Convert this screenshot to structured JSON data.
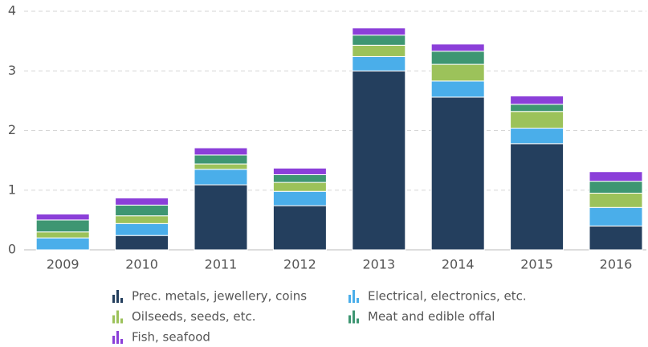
{
  "chart_data": {
    "type": "stacked_bar",
    "categories": [
      "2009",
      "2010",
      "2011",
      "2012",
      "2013",
      "2014",
      "2015",
      "2016"
    ],
    "series": [
      {
        "name": "Prec. metals, jewellery, coins",
        "color": "#243f5e",
        "values": [
          0.0,
          0.24,
          1.09,
          0.74,
          3.0,
          2.56,
          1.78,
          0.4
        ]
      },
      {
        "name": "Electrical, electronics, etc.",
        "color": "#4aaeea",
        "values": [
          0.2,
          0.2,
          0.26,
          0.24,
          0.24,
          0.27,
          0.26,
          0.31
        ]
      },
      {
        "name": "Oilseeds, seeds, etc.",
        "color": "#9cc25a",
        "values": [
          0.1,
          0.13,
          0.09,
          0.15,
          0.19,
          0.28,
          0.28,
          0.24
        ]
      },
      {
        "name": "Meat and edible offal",
        "color": "#3e9672",
        "values": [
          0.2,
          0.18,
          0.15,
          0.13,
          0.17,
          0.22,
          0.12,
          0.2
        ]
      },
      {
        "name": "Fish, seafood",
        "color": "#8b3fd9",
        "values": [
          0.1,
          0.12,
          0.12,
          0.11,
          0.12,
          0.12,
          0.14,
          0.16
        ]
      }
    ],
    "ylim": [
      0,
      4
    ],
    "yticks": [
      0,
      1,
      2,
      3,
      4
    ],
    "grid": true
  }
}
